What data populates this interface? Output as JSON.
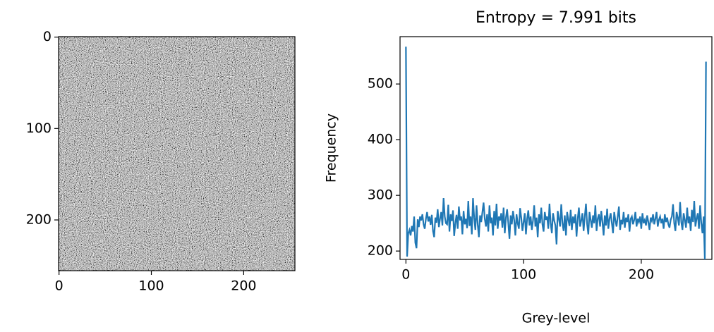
{
  "chart_data": [
    {
      "type": "image",
      "xlim": [
        -0.5,
        255.5
      ],
      "ylim": [
        255.5,
        -0.5
      ],
      "xticks": [
        0,
        100,
        200
      ],
      "yticks": [
        0,
        100,
        200
      ]
    },
    {
      "type": "line",
      "title": "Entropy = 7.991 bits",
      "xlabel": "Grey-level",
      "ylabel": "Frequency",
      "color": "#1f77b4",
      "xlim": [
        -5,
        260
      ],
      "ylim": [
        185,
        585
      ],
      "xticks": [
        0,
        100,
        200
      ],
      "yticks": [
        200,
        300,
        400,
        500
      ],
      "x": [
        0,
        1,
        2,
        3,
        4,
        5,
        6,
        7,
        8,
        9,
        10,
        11,
        12,
        13,
        14,
        15,
        16,
        17,
        18,
        19,
        20,
        21,
        22,
        23,
        24,
        25,
        26,
        27,
        28,
        29,
        30,
        31,
        32,
        33,
        34,
        35,
        36,
        37,
        38,
        39,
        40,
        41,
        42,
        43,
        44,
        45,
        46,
        47,
        48,
        49,
        50,
        51,
        52,
        53,
        54,
        55,
        56,
        57,
        58,
        59,
        60,
        61,
        62,
        63,
        64,
        65,
        66,
        67,
        68,
        69,
        70,
        71,
        72,
        73,
        74,
        75,
        76,
        77,
        78,
        79,
        80,
        81,
        82,
        83,
        84,
        85,
        86,
        87,
        88,
        89,
        90,
        91,
        92,
        93,
        94,
        95,
        96,
        97,
        98,
        99,
        100,
        101,
        102,
        103,
        104,
        105,
        106,
        107,
        108,
        109,
        110,
        111,
        112,
        113,
        114,
        115,
        116,
        117,
        118,
        119,
        120,
        121,
        122,
        123,
        124,
        125,
        126,
        127,
        128,
        129,
        130,
        131,
        132,
        133,
        134,
        135,
        136,
        137,
        138,
        139,
        140,
        141,
        142,
        143,
        144,
        145,
        146,
        147,
        148,
        149,
        150,
        151,
        152,
        153,
        154,
        155,
        156,
        157,
        158,
        159,
        160,
        161,
        162,
        163,
        164,
        165,
        166,
        167,
        168,
        169,
        170,
        171,
        172,
        173,
        174,
        175,
        176,
        177,
        178,
        179,
        180,
        181,
        182,
        183,
        184,
        185,
        186,
        187,
        188,
        189,
        190,
        191,
        192,
        193,
        194,
        195,
        196,
        197,
        198,
        199,
        200,
        201,
        202,
        203,
        204,
        205,
        206,
        207,
        208,
        209,
        210,
        211,
        212,
        213,
        214,
        215,
        216,
        217,
        218,
        219,
        220,
        221,
        222,
        223,
        224,
        225,
        226,
        227,
        228,
        229,
        230,
        231,
        232,
        233,
        234,
        235,
        236,
        237,
        238,
        239,
        240,
        241,
        242,
        243,
        244,
        245,
        246,
        247,
        248,
        249,
        250,
        251,
        252,
        253,
        254,
        255
      ],
      "values": [
        567,
        190,
        232,
        238,
        228,
        245,
        235,
        262,
        215,
        205,
        257,
        243,
        262,
        255,
        266,
        248,
        240,
        258,
        270,
        253,
        262,
        247,
        265,
        236,
        225,
        260,
        251,
        275,
        243,
        258,
        270,
        246,
        295,
        262,
        250,
        248,
        283,
        235,
        266,
        254,
        273,
        227,
        250,
        265,
        240,
        280,
        255,
        262,
        230,
        272,
        248,
        258,
        241,
        290,
        245,
        262,
        230,
        295,
        260,
        238,
        282,
        248,
        225,
        264,
        252,
        270,
        287,
        258,
        244,
        266,
        235,
        282,
        250,
        260,
        228,
        272,
        246,
        285,
        240,
        262,
        255,
        268,
        242,
        278,
        232,
        260,
        275,
        250,
        222,
        264,
        248,
        272,
        256,
        228,
        266,
        250,
        240,
        277,
        260,
        236,
        252,
        268,
        230,
        258,
        273,
        246,
        262,
        238,
        255,
        282,
        244,
        260,
        225,
        266,
        250,
        278,
        248,
        235,
        270,
        256,
        262,
        240,
        285,
        250,
        232,
        268,
        255,
        246,
        212,
        272,
        258,
        244,
        284,
        250,
        236,
        264,
        228,
        270,
        256,
        245,
        274,
        238,
        262,
        250,
        266,
        226,
        258,
        278,
        244,
        255,
        268,
        236,
        262,
        285,
        248,
        230,
        270,
        256,
        242,
        264,
        250,
        282,
        236,
        258,
        266,
        244,
        272,
        252,
        228,
        264,
        246,
        276,
        240,
        258,
        268,
        250,
        232,
        270,
        255,
        244,
        262,
        280,
        238,
        256,
        248,
        270,
        242,
        260,
        252,
        266,
        235,
        258,
        262,
        248,
        256,
        270,
        244,
        258,
        252,
        262,
        240,
        268,
        250,
        256,
        246,
        264,
        252,
        238,
        260,
        254,
        266,
        248,
        258,
        270,
        244,
        256,
        262,
        250,
        258,
        240,
        266,
        252,
        260,
        248,
        242,
        256,
        262,
        284,
        250,
        236,
        270,
        260,
        246,
        288,
        252,
        238,
        268,
        256,
        242,
        278,
        250,
        262,
        236,
        274,
        252,
        290,
        244,
        258,
        268,
        240,
        282,
        250,
        232,
        262,
        185,
        540
      ]
    }
  ]
}
